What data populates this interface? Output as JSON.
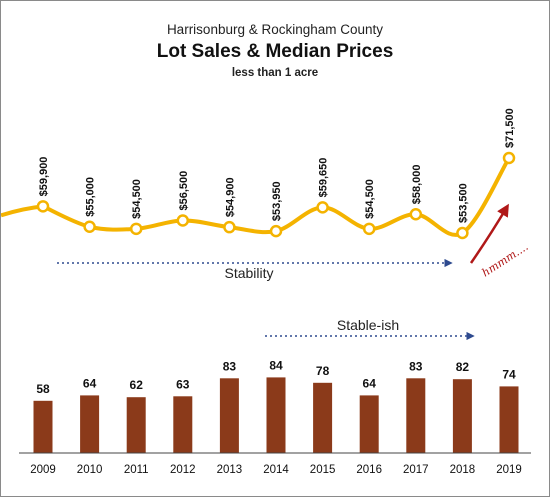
{
  "chart_data": [
    {
      "type": "line",
      "title": "Harrisonburg & Rockingham County",
      "subtitle": "Lot Sales & Median Prices",
      "note": "less than 1 acre",
      "categories": [
        "2009",
        "2010",
        "2011",
        "2012",
        "2013",
        "2014",
        "2015",
        "2016",
        "2017",
        "2018",
        "2019"
      ],
      "series": [
        {
          "values": [
            59900,
            55000,
            54500,
            56500,
            54900,
            53950,
            59650,
            54500,
            58000,
            53500,
            71500
          ],
          "labels": [
            "$59,900",
            "$55,000",
            "$54,500",
            "$56,500",
            "$54,900",
            "$53,950",
            "$59,650",
            "$54,500",
            "$58,000",
            "$53,500",
            "$71,500"
          ]
        }
      ],
      "annotations": [
        {
          "text": "Stability",
          "from": "2009",
          "to": "2018"
        },
        {
          "text": "hmmm....",
          "near": "2019"
        }
      ],
      "grid": false,
      "legend": "none",
      "colors": {
        "line": "#f4b300",
        "marker_fill": "#ffffff",
        "marker_stroke": "#f4b300",
        "arrow_dotted": "#2e4a8f",
        "arrow_red": "#b01818"
      }
    },
    {
      "type": "bar",
      "categories": [
        "2009",
        "2010",
        "2011",
        "2012",
        "2013",
        "2014",
        "2015",
        "2016",
        "2017",
        "2018",
        "2019"
      ],
      "values": [
        58,
        64,
        62,
        63,
        83,
        84,
        78,
        64,
        83,
        82,
        74
      ],
      "annotations": [
        {
          "text": "Stable-ish",
          "from": "2014",
          "to": "2018"
        }
      ],
      "grid": false,
      "legend": "none",
      "colors": {
        "bar": "#8b3a1a",
        "axis": "#444444",
        "arrow_dotted": "#2e4a8f"
      }
    }
  ]
}
